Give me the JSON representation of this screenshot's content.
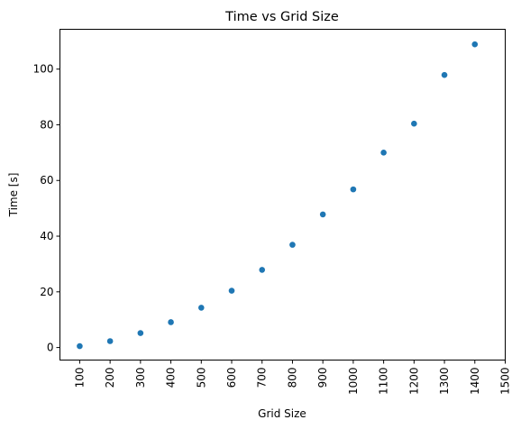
{
  "chart_data": {
    "type": "scatter",
    "title": "Time vs Grid Size",
    "xlabel": "Grid Size",
    "ylabel": "Time [s]",
    "x": [
      100,
      200,
      300,
      400,
      500,
      600,
      700,
      800,
      900,
      1000,
      1100,
      1200,
      1300,
      1400
    ],
    "y": [
      0.5,
      2.3,
      5.2,
      9.1,
      14.3,
      20.4,
      27.9,
      36.9,
      47.8,
      56.8,
      70.0,
      80.4,
      97.9,
      108.9
    ],
    "xticks": [
      100,
      200,
      300,
      400,
      500,
      600,
      700,
      800,
      900,
      1000,
      1100,
      1200,
      1300,
      1400,
      1500
    ],
    "yticks": [
      0,
      20,
      40,
      60,
      80,
      100
    ],
    "xlim": [
      35,
      1500
    ],
    "ylim": [
      -4.5,
      114.3
    ],
    "grid": false,
    "marker_color": "#1f77b4"
  }
}
